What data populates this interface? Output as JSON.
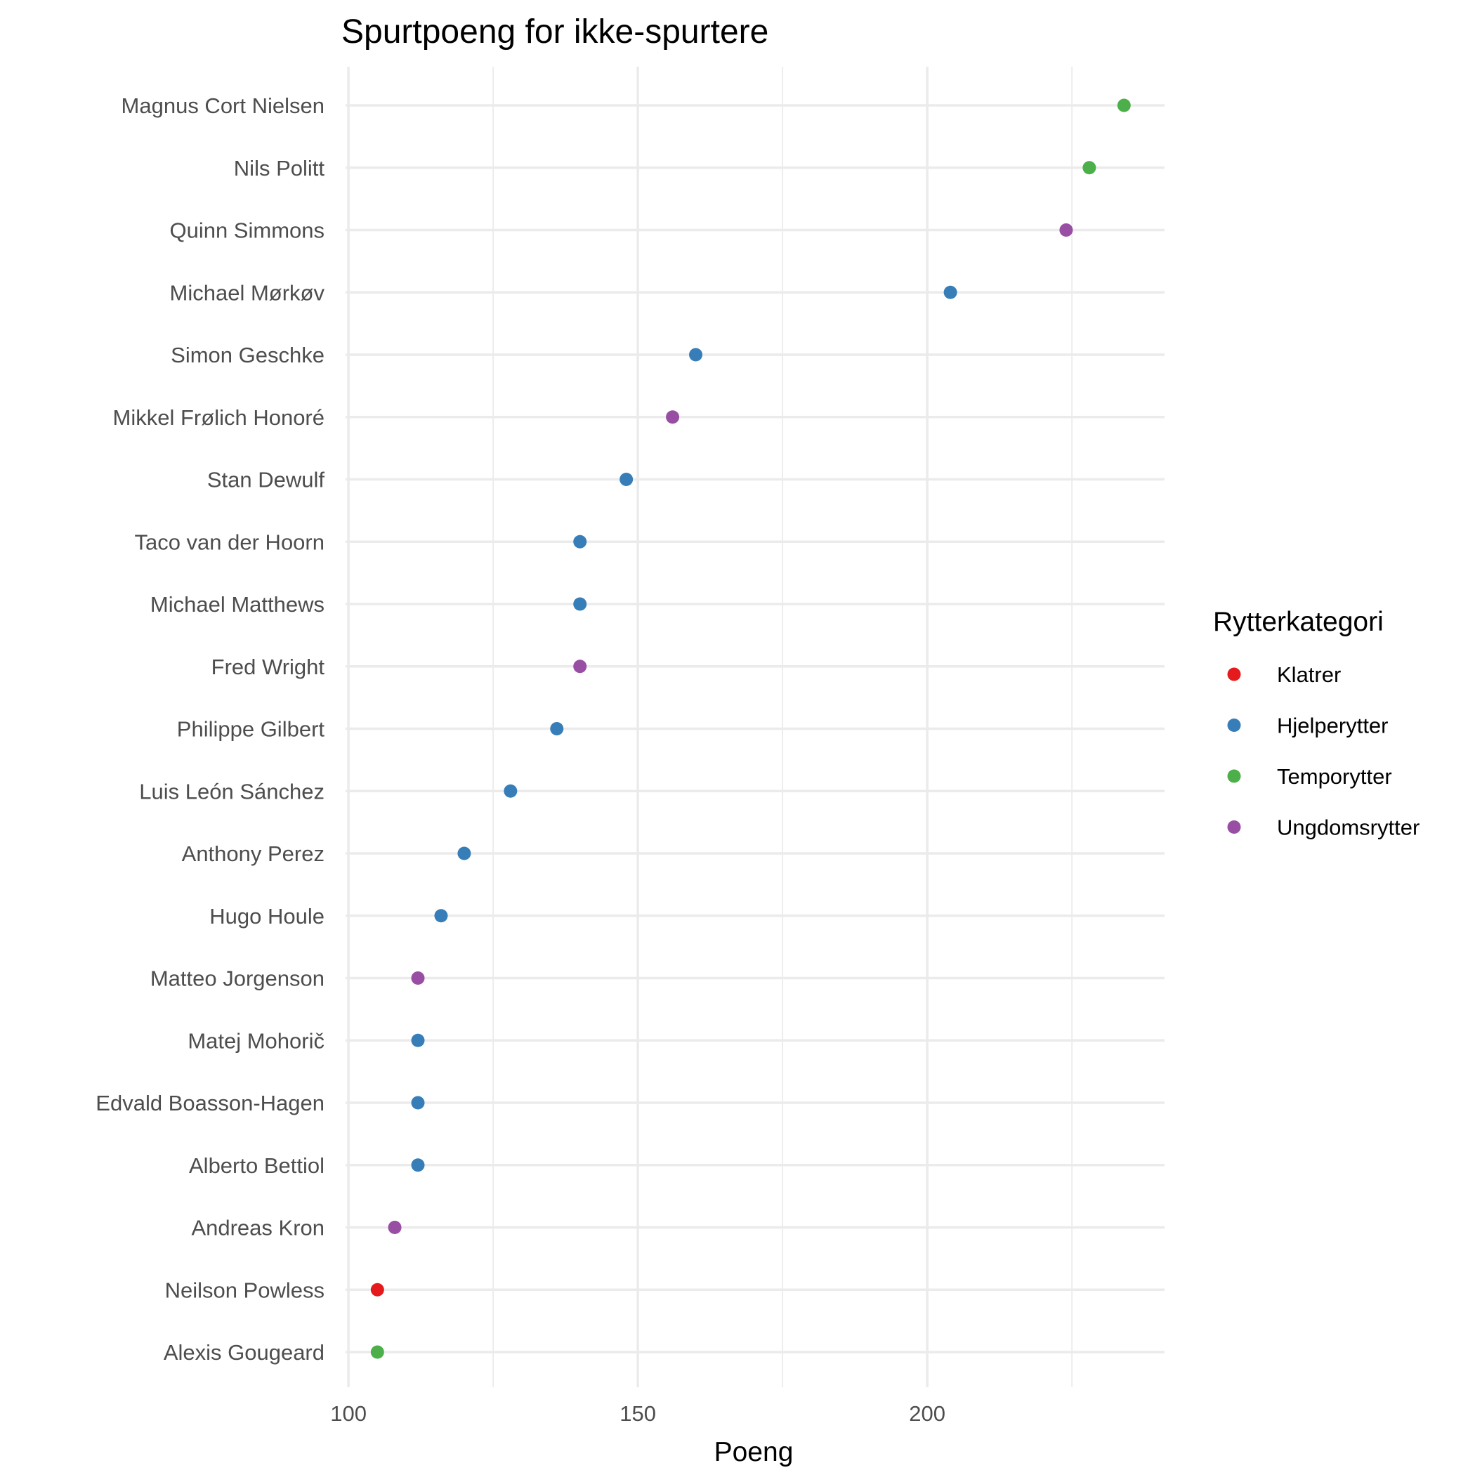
{
  "chart_data": {
    "type": "scatter",
    "title": "Spurtpoeng for ikke-spurtere",
    "xlabel": "Poeng",
    "ylabel": "",
    "xlim": [
      99.5,
      241
    ],
    "x_ticks": [
      100,
      150,
      200
    ],
    "x_minor_ticks": [
      125,
      175,
      225
    ],
    "grid": true,
    "legend": {
      "title": "Rytterkategori",
      "placement": "right",
      "entries": [
        {
          "name": "Klatrer",
          "color": "#e41a1c"
        },
        {
          "name": "Hjelperytter",
          "color": "#377eb8"
        },
        {
          "name": "Temporytter",
          "color": "#4daf4a"
        },
        {
          "name": "Ungdomsrytter",
          "color": "#984ea3"
        }
      ]
    },
    "points": [
      {
        "rider": "Magnus Cort Nielsen",
        "points": 234,
        "category": "Temporytter"
      },
      {
        "rider": "Nils Politt",
        "points": 228,
        "category": "Temporytter"
      },
      {
        "rider": "Quinn Simmons",
        "points": 224,
        "category": "Ungdomsrytter"
      },
      {
        "rider": "Michael Mørkøv",
        "points": 204,
        "category": "Hjelperytter"
      },
      {
        "rider": "Simon Geschke",
        "points": 160,
        "category": "Hjelperytter"
      },
      {
        "rider": "Mikkel Frølich Honoré",
        "points": 156,
        "category": "Ungdomsrytter"
      },
      {
        "rider": "Stan Dewulf",
        "points": 148,
        "category": "Hjelperytter"
      },
      {
        "rider": "Taco van der Hoorn",
        "points": 140,
        "category": "Hjelperytter"
      },
      {
        "rider": "Michael Matthews",
        "points": 140,
        "category": "Hjelperytter"
      },
      {
        "rider": "Fred Wright",
        "points": 140,
        "category": "Ungdomsrytter"
      },
      {
        "rider": "Philippe Gilbert",
        "points": 136,
        "category": "Hjelperytter"
      },
      {
        "rider": "Luis León Sánchez",
        "points": 128,
        "category": "Hjelperytter"
      },
      {
        "rider": "Anthony Perez",
        "points": 120,
        "category": "Hjelperytter"
      },
      {
        "rider": "Hugo Houle",
        "points": 116,
        "category": "Hjelperytter"
      },
      {
        "rider": "Matteo Jorgenson",
        "points": 112,
        "category": "Ungdomsrytter"
      },
      {
        "rider": "Matej Mohorič",
        "points": 112,
        "category": "Hjelperytter"
      },
      {
        "rider": "Edvald Boasson-Hagen",
        "points": 112,
        "category": "Hjelperytter"
      },
      {
        "rider": "Alberto Bettiol",
        "points": 112,
        "category": "Hjelperytter"
      },
      {
        "rider": "Andreas Kron",
        "points": 108,
        "category": "Ungdomsrytter"
      },
      {
        "rider": "Neilson Powless",
        "points": 105,
        "category": "Klatrer"
      },
      {
        "rider": "Alexis Gougeard",
        "points": 105,
        "category": "Temporytter"
      }
    ]
  }
}
